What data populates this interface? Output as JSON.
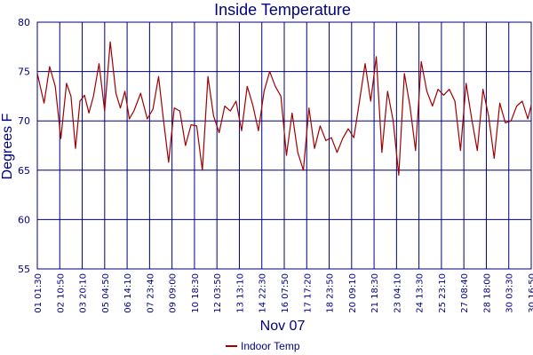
{
  "colors": {
    "series": "#a00000",
    "grid": "#00007a",
    "text": "#000080",
    "background": "#ffffff"
  },
  "chart_data": {
    "type": "line",
    "title": "Inside Temperature",
    "xlabel": "Nov 07",
    "ylabel": "Degrees F",
    "ylim": [
      55,
      80
    ],
    "yticks": [
      55,
      60,
      65,
      70,
      75,
      80
    ],
    "xticks": [
      "01 01:30",
      "02 10:50",
      "03 20:10",
      "05 04:50",
      "06 14:10",
      "07 23:40",
      "09 09:00",
      "10 18:30",
      "12 03:50",
      "13 13:10",
      "14 22:30",
      "16 07:50",
      "17 17:20",
      "18 23:50",
      "20 09:10",
      "21 18:30",
      "23 04:10",
      "24 13:30",
      "25 23:10",
      "27 08:40",
      "28 18:00",
      "30 03:30",
      "30 16:50"
    ],
    "grid": true,
    "legend_position": "bottom-center",
    "series": [
      {
        "name": "Indoor Temp",
        "x": [
          0.0,
          0.3,
          0.55,
          0.8,
          1.05,
          1.3,
          1.5,
          1.7,
          1.9,
          2.1,
          2.3,
          2.5,
          2.75,
          3.0,
          3.25,
          3.5,
          3.7,
          3.9,
          4.1,
          4.3,
          4.6,
          4.9,
          5.15,
          5.4,
          5.6,
          5.85,
          6.1,
          6.35,
          6.6,
          6.85,
          7.1,
          7.35,
          7.6,
          7.85,
          8.1,
          8.35,
          8.6,
          8.85,
          9.1,
          9.35,
          9.6,
          9.85,
          10.1,
          10.35,
          10.6,
          10.85,
          11.1,
          11.35,
          11.6,
          11.85,
          12.1,
          12.35,
          12.6,
          12.85,
          13.1,
          13.35,
          13.6,
          13.85,
          14.1,
          14.35,
          14.6,
          14.85,
          15.1,
          15.35,
          15.6,
          15.85,
          16.1,
          16.35,
          16.6,
          16.85,
          17.1,
          17.35,
          17.6,
          17.85,
          18.1,
          18.35,
          18.6,
          18.85,
          19.1,
          19.35,
          19.6,
          19.85,
          20.1,
          20.35,
          20.6,
          20.85,
          21.1,
          21.35,
          21.6,
          21.85,
          22.0
        ],
        "values": [
          74.8,
          71.8,
          75.5,
          73.5,
          68.2,
          73.8,
          72.5,
          67.2,
          72.0,
          72.6,
          70.8,
          72.5,
          75.8,
          71.0,
          78.0,
          72.8,
          71.3,
          73.0,
          70.2,
          71.0,
          72.8,
          70.2,
          71.2,
          74.5,
          70.5,
          65.8,
          71.3,
          71.0,
          67.5,
          69.6,
          69.5,
          65.0,
          74.5,
          70.5,
          68.8,
          71.5,
          71.0,
          72.0,
          69.0,
          73.5,
          71.6,
          69.0,
          73.0,
          75.0,
          73.5,
          72.5,
          66.5,
          70.8,
          66.8,
          65.0,
          71.3,
          67.2,
          69.5,
          68.0,
          68.3,
          66.8,
          68.2,
          69.2,
          68.3,
          72.0,
          75.8,
          72.0,
          76.5,
          66.8,
          73.0,
          70.0,
          64.5,
          74.8,
          71.5,
          67.0,
          76.0,
          73.0,
          71.5,
          73.2,
          72.6,
          73.2,
          72.0,
          67.0,
          73.8,
          70.2,
          67.0,
          73.2,
          70.5,
          66.2,
          71.8,
          69.8,
          70.0,
          71.5,
          72.0,
          70.2,
          71.6
        ]
      }
    ]
  },
  "legend": {
    "label": "Indoor Temp"
  }
}
